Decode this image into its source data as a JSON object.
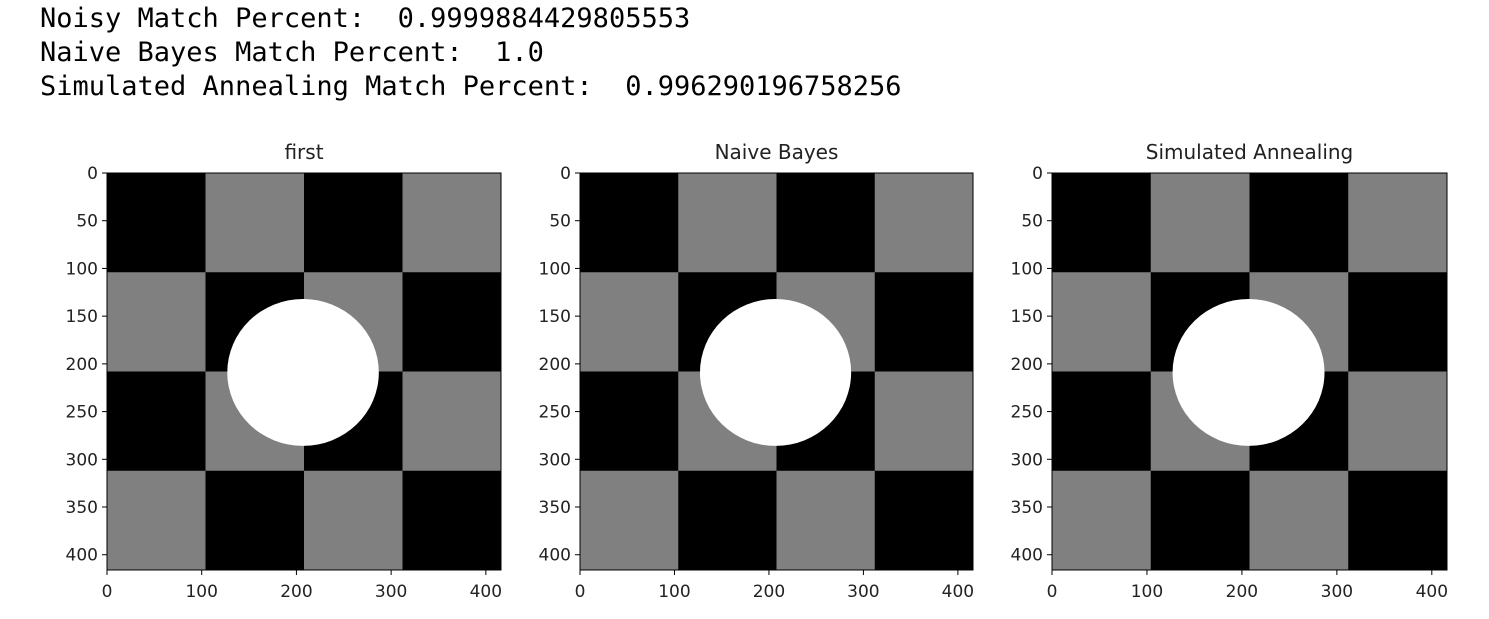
{
  "output_lines": [
    "Noisy Match Percent:  0.9999884429805553",
    "Naive Bayes Match Percent:  1.0",
    "Simulated Annealing Match Percent:  0.996290196758256"
  ],
  "chart_data": [
    {
      "type": "image",
      "title": "first",
      "xlim": [
        0,
        416
      ],
      "ylim": [
        416,
        0
      ],
      "xticks": [
        0,
        100,
        200,
        300,
        400
      ],
      "yticks": [
        0,
        50,
        100,
        150,
        200,
        250,
        300,
        350,
        400
      ]
    },
    {
      "type": "image",
      "title": "Naive Bayes",
      "xlim": [
        0,
        416
      ],
      "ylim": [
        416,
        0
      ],
      "xticks": [
        0,
        100,
        200,
        300,
        400
      ],
      "yticks": [
        0,
        50,
        100,
        150,
        200,
        250,
        300,
        350,
        400
      ]
    },
    {
      "type": "image",
      "title": "Simulated Annealing",
      "xlim": [
        0,
        416
      ],
      "ylim": [
        416,
        0
      ],
      "xticks": [
        0,
        100,
        200,
        300,
        400
      ],
      "yticks": [
        0,
        50,
        100,
        150,
        200,
        250,
        300,
        350,
        400
      ]
    }
  ]
}
